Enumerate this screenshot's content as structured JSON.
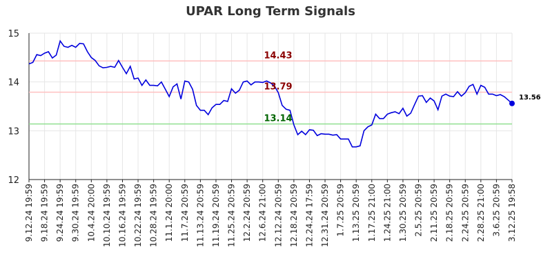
{
  "chart_data": {
    "type": "line",
    "title": "UPAR Long Term Signals",
    "xlabel": "",
    "ylabel": "",
    "ylim": [
      12,
      15
    ],
    "yticks": [
      "12",
      "13",
      "14",
      "15"
    ],
    "grid": true,
    "line_color": "#0000dd",
    "xtick_labels": [
      "9.12.24 19:59",
      "9.18.24 19:59",
      "9.24.24 19:59",
      "9.30.24 19:59",
      "10.4.24 20:00",
      "10.10.24 19:59",
      "10.16.24 19:59",
      "10.22.24 19:59",
      "10.28.24 19:59",
      "11.1.24 20:00",
      "11.7.24 20:59",
      "11.13.24 20:59",
      "11.19.24 20:59",
      "11.25.24 20:59",
      "12.2.24 20:59",
      "12.6.24 21:00",
      "12.12.24 20:59",
      "12.18.24 20:59",
      "12.24.24 17:59",
      "12.31.24 20:59",
      "1.7.25 20:59",
      "1.13.25 20:59",
      "1.17.25 21:00",
      "1.24.25 21:00",
      "1.30.25 20:59",
      "2.5.25 20:59",
      "2.11.25 20:59",
      "2.18.25 20:59",
      "2.24.25 20:59",
      "2.28.25 21:00",
      "3.6.25 20:59",
      "3.12.25 19:58"
    ],
    "xtick_positions": [
      0,
      4,
      8,
      12,
      16,
      20,
      24,
      28,
      32,
      36,
      40,
      44,
      48,
      52,
      56,
      60,
      64,
      68,
      72,
      76,
      80,
      84,
      88,
      92,
      96,
      100,
      104,
      108,
      112,
      116,
      120,
      124
    ],
    "values": [
      14.37,
      14.4,
      14.56,
      14.54,
      14.59,
      14.62,
      14.49,
      14.55,
      14.84,
      14.73,
      14.71,
      14.75,
      14.71,
      14.79,
      14.78,
      14.62,
      14.5,
      14.44,
      14.33,
      14.29,
      14.3,
      14.32,
      14.3,
      14.44,
      14.3,
      14.17,
      14.32,
      14.06,
      14.08,
      13.93,
      14.04,
      13.93,
      13.93,
      13.92,
      14.0,
      13.85,
      13.7,
      13.9,
      13.96,
      13.65,
      14.02,
      14.0,
      13.85,
      13.52,
      13.42,
      13.42,
      13.33,
      13.47,
      13.54,
      13.54,
      13.62,
      13.6,
      13.86,
      13.77,
      13.83,
      14.0,
      14.02,
      13.94,
      14.0,
      14.0,
      13.99,
      14.02,
      13.98,
      13.92,
      13.78,
      13.52,
      13.44,
      13.42,
      13.12,
      12.92,
      12.99,
      12.92,
      13.02,
      13.01,
      12.9,
      12.94,
      12.93,
      12.93,
      12.91,
      12.92,
      12.83,
      12.83,
      12.83,
      12.67,
      12.67,
      12.69,
      13.0,
      13.08,
      13.12,
      13.34,
      13.25,
      13.25,
      13.34,
      13.37,
      13.39,
      13.35,
      13.46,
      13.3,
      13.36,
      13.54,
      13.71,
      13.72,
      13.58,
      13.67,
      13.61,
      13.43,
      13.71,
      13.75,
      13.71,
      13.7,
      13.8,
      13.71,
      13.78,
      13.91,
      13.95,
      13.75,
      13.93,
      13.89,
      13.75,
      13.75,
      13.72,
      13.74,
      13.7,
      13.63,
      13.56
    ],
    "reference_lines": [
      {
        "value": 14.43,
        "label": "14.43",
        "line_color": "#ffc0c0",
        "label_color": "#8b0000"
      },
      {
        "value": 13.79,
        "label": "13.79",
        "line_color": "#ffc0c0",
        "label_color": "#8b0000"
      },
      {
        "value": 13.14,
        "label": "13.14",
        "line_color": "#90e090",
        "label_color": "#006400"
      }
    ],
    "last_value_label": "13.56"
  }
}
